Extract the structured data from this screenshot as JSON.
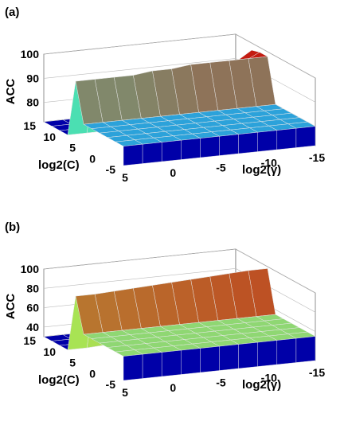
{
  "chart_data": [
    {
      "type": "surface",
      "panel_label": "(a)",
      "zlabel": "ACC",
      "xlabel": "log2(γ)",
      "ylabel": "log2(C)",
      "x_ticks": [
        "5",
        "0",
        "-5",
        "-10",
        "-15"
      ],
      "y_ticks": [
        "15",
        "10",
        "5",
        "0",
        "-5"
      ],
      "z_ticks": [
        "100",
        "90",
        "80"
      ],
      "x": [
        5,
        3,
        1,
        -1,
        -3,
        -5,
        -7,
        -9,
        -11,
        -13,
        -15
      ],
      "y": [
        -5,
        -3,
        -1,
        1,
        3,
        5,
        7,
        9,
        11,
        13,
        15
      ],
      "zlim": [
        72,
        100
      ],
      "z_rows": [
        [
          80,
          80,
          80,
          80,
          80,
          80,
          80,
          80,
          80,
          80,
          80
        ],
        [
          80,
          80,
          80,
          80,
          80,
          80,
          80,
          80,
          80,
          80,
          80
        ],
        [
          80,
          80,
          80,
          80,
          80,
          80,
          80,
          80,
          80,
          80,
          80
        ],
        [
          80,
          80,
          80,
          80,
          80,
          80,
          80,
          80,
          80,
          80,
          80
        ],
        [
          80,
          80,
          80,
          80,
          80,
          80,
          80,
          80,
          80,
          80,
          80
        ],
        [
          80,
          80,
          80,
          80,
          80,
          80,
          80,
          80,
          80,
          80,
          80
        ],
        [
          96,
          96,
          96,
          96,
          97,
          97,
          98,
          98,
          98,
          98,
          98
        ],
        [
          72,
          72,
          72,
          73,
          75,
          78,
          82,
          86,
          90,
          94,
          98
        ],
        [
          72,
          72,
          72,
          72,
          73,
          74,
          76,
          80,
          85,
          92,
          97
        ],
        [
          72,
          72,
          72,
          72,
          72,
          72,
          73,
          74,
          76,
          80,
          84
        ],
        [
          72,
          72,
          72,
          72,
          72,
          72,
          72,
          72,
          72,
          72,
          72
        ]
      ],
      "colors": {
        "high": "#c41c12",
        "peak": "#ff7a1a",
        "mid": "#40f0c0",
        "low": "#0000a8"
      }
    },
    {
      "type": "surface",
      "panel_label": "(b)",
      "zlabel": "ACC",
      "xlabel": "log2(γ)",
      "ylabel": "log2(C)",
      "x_ticks": [
        "5",
        "0",
        "-5",
        "-10",
        "-15"
      ],
      "y_ticks": [
        "15",
        "10",
        "5",
        "0",
        "-5"
      ],
      "z_ticks": [
        "100",
        "80",
        "60",
        "40"
      ],
      "x": [
        5,
        3,
        1,
        -1,
        -3,
        -5,
        -7,
        -9,
        -11,
        -13,
        -15
      ],
      "y": [
        -5,
        -3,
        -1,
        1,
        3,
        5,
        7,
        9,
        11,
        13,
        15
      ],
      "zlim": [
        30,
        100
      ],
      "z_rows": [
        [
          55,
          55,
          55,
          55,
          55,
          55,
          55,
          55,
          55,
          55,
          55
        ],
        [
          55,
          55,
          55,
          55,
          55,
          55,
          55,
          55,
          55,
          55,
          55
        ],
        [
          55,
          55,
          55,
          55,
          55,
          55,
          55,
          55,
          55,
          55,
          55
        ],
        [
          55,
          55,
          55,
          55,
          55,
          55,
          55,
          55,
          55,
          55,
          55
        ],
        [
          55,
          55,
          55,
          55,
          55,
          55,
          55,
          55,
          55,
          55,
          55
        ],
        [
          55,
          55,
          55,
          55,
          55,
          55,
          55,
          55,
          55,
          55,
          55
        ],
        [
          90,
          90,
          91,
          92,
          93,
          94,
          95,
          96,
          97,
          98,
          98
        ],
        [
          30,
          30,
          31,
          33,
          40,
          48,
          56,
          64,
          70,
          78,
          92
        ],
        [
          30,
          30,
          30,
          30,
          32,
          36,
          42,
          50,
          60,
          70,
          85
        ],
        [
          30,
          30,
          30,
          30,
          30,
          30,
          30,
          31,
          33,
          36,
          40
        ],
        [
          30,
          30,
          30,
          30,
          30,
          30,
          30,
          30,
          30,
          30,
          30
        ]
      ],
      "colors": {
        "high": "#c41c12",
        "peak": "#ff7a1a",
        "mid": "#a6f55a",
        "low": "#0000a8"
      }
    }
  ]
}
